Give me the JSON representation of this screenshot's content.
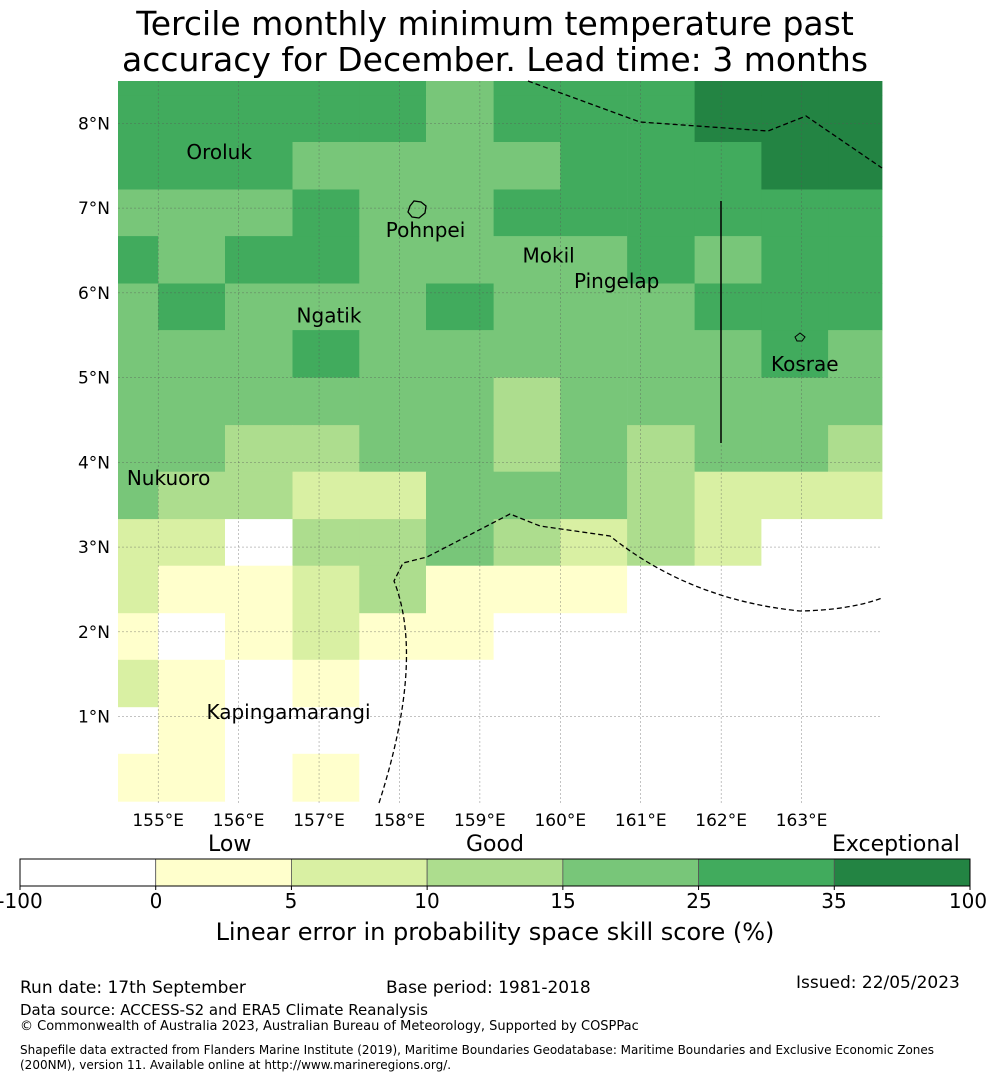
{
  "title_line1": "Tercile monthly minimum temperature past",
  "title_line2": "accuracy for December. Lead time: 3 months",
  "colors": {
    "lt0": "#ffffff",
    "b0_5": "#ffffcc",
    "b5_10": "#d9f0a3",
    "b10_15": "#addd8e",
    "b15_25": "#78c679",
    "b25_35": "#41ab5d",
    "b35_100": "#238443"
  },
  "chart_data": {
    "type": "heatmap",
    "x_ticks": [
      "155°E",
      "156°E",
      "157°E",
      "158°E",
      "159°E",
      "160°E",
      "161°E",
      "162°E",
      "163°E"
    ],
    "y_ticks": [
      "8°N",
      "7°N",
      "6°N",
      "5°N",
      "4°N",
      "3°N",
      "2°N",
      "1°N"
    ],
    "lon_range": [
      154.5,
      164.0
    ],
    "lat_range": [
      -0.02,
      8.5
    ],
    "grid_lon_edges": [
      154.5,
      155.0,
      155.83,
      156.67,
      157.5,
      158.33,
      159.17,
      160.0,
      160.83,
      161.67,
      162.5,
      163.33,
      164.0
    ],
    "grid_lat_edges": [
      8.5,
      8.33,
      7.78,
      7.22,
      6.67,
      6.11,
      5.56,
      5.0,
      4.44,
      3.89,
      3.33,
      2.78,
      2.22,
      1.67,
      1.11,
      0.56,
      0.0
    ],
    "category_key": [
      "lt0",
      "b0_5",
      "b5_10",
      "b10_15",
      "b15_25",
      "b25_35",
      "b35_100"
    ],
    "cells": [
      [
        5,
        5,
        5,
        5,
        5,
        4,
        5,
        5,
        5,
        6,
        6,
        6
      ],
      [
        5,
        5,
        5,
        5,
        5,
        4,
        5,
        5,
        5,
        6,
        6,
        6
      ],
      [
        5,
        5,
        5,
        4,
        4,
        4,
        4,
        5,
        5,
        5,
        6,
        6
      ],
      [
        4,
        4,
        4,
        5,
        4,
        4,
        5,
        5,
        5,
        5,
        5,
        5
      ],
      [
        5,
        4,
        5,
        5,
        4,
        4,
        4,
        4,
        5,
        4,
        5,
        5
      ],
      [
        4,
        5,
        4,
        4,
        4,
        5,
        4,
        4,
        4,
        5,
        5,
        5
      ],
      [
        4,
        4,
        4,
        5,
        4,
        4,
        4,
        4,
        4,
        4,
        5,
        4
      ],
      [
        4,
        4,
        4,
        4,
        4,
        4,
        3,
        4,
        4,
        4,
        4,
        4
      ],
      [
        4,
        4,
        3,
        3,
        4,
        4,
        3,
        4,
        3,
        4,
        4,
        3
      ],
      [
        4,
        3,
        3,
        2,
        2,
        4,
        4,
        4,
        3,
        2,
        2,
        2
      ],
      [
        2,
        2,
        0,
        3,
        3,
        4,
        3,
        2,
        3,
        2,
        0,
        0
      ],
      [
        2,
        1,
        1,
        2,
        3,
        1,
        1,
        1,
        0,
        0,
        0,
        0
      ],
      [
        1,
        0,
        1,
        2,
        1,
        1,
        0,
        0,
        0,
        0,
        0,
        0
      ],
      [
        2,
        1,
        0,
        1,
        0,
        0,
        0,
        0,
        0,
        0,
        0,
        0
      ],
      [
        0,
        1,
        0,
        0,
        0,
        0,
        0,
        0,
        0,
        0,
        0,
        0
      ],
      [
        1,
        1,
        0,
        1,
        0,
        0,
        0,
        0,
        0,
        0,
        0,
        0
      ]
    ],
    "places": [
      {
        "name": "Oroluk",
        "lon": 155.35,
        "lat": 7.58
      },
      {
        "name": "Pohnpei",
        "lon": 157.83,
        "lat": 6.66
      },
      {
        "name": "Mokil",
        "lon": 159.53,
        "lat": 6.36
      },
      {
        "name": "Pingelap",
        "lon": 160.17,
        "lat": 6.06
      },
      {
        "name": "Ngatik",
        "lon": 156.72,
        "lat": 5.65
      },
      {
        "name": "Kosrae",
        "lon": 162.62,
        "lat": 5.08
      },
      {
        "name": "Nukuoro",
        "lon": 154.61,
        "lat": 3.73
      },
      {
        "name": "Kapingamarangi",
        "lon": 155.6,
        "lat": 0.97
      }
    ],
    "colorbar": {
      "ticks": [
        "-100",
        "0",
        "5",
        "10",
        "15",
        "25",
        "35",
        "100"
      ],
      "levels": [
        "Low",
        "Good",
        "Exceptional"
      ],
      "label": "Linear error in probability space skill score (%)"
    }
  },
  "footer": {
    "run_date": "Run date: 17th September",
    "base_period": "Base period: 1981-2018",
    "issued": "Issued: 22/05/2023",
    "data_source": "Data source: ACCESS-S2 and ERA5 Climate Reanalysis",
    "copyright": "© Commonwealth of Australia 2023, Australian Bureau of Meteorology, Supported by COSPPac",
    "shapefile_line1": "Shapefile data extracted from Flanders Marine Institute (2019), Maritime Boundaries Geodatabase: Maritime Boundaries and Exclusive Economic Zones",
    "shapefile_line2": "(200NM), version 11. Available online at http://www.marineregions.org/."
  }
}
